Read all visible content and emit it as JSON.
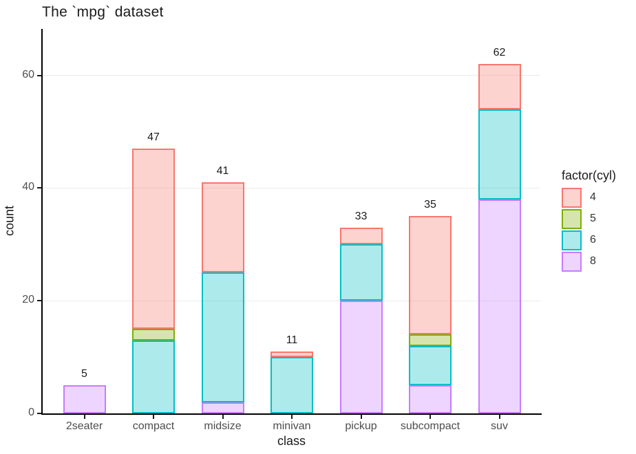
{
  "title": "The `mpg` dataset",
  "axes": {
    "x_label": "class",
    "y_label": "count",
    "y_ticks": [
      0,
      20,
      40,
      60
    ]
  },
  "legend": {
    "title": "factor(cyl)",
    "entries": [
      {
        "label": "4",
        "color": "#F8766D"
      },
      {
        "label": "5",
        "color": "#7CAE00"
      },
      {
        "label": "6",
        "color": "#00BFC4"
      },
      {
        "label": "8",
        "color": "#C77CFF"
      }
    ]
  },
  "style": {
    "fill_alpha": 0.32,
    "grid_color": "#ebebeb",
    "axis_color": "#000000",
    "tick_label_color": "#4d4d4d",
    "text_color": "#1a1a1a"
  },
  "chart_data": {
    "type": "bar",
    "stacked": true,
    "title": "The `mpg` dataset",
    "xlabel": "class",
    "ylabel": "count",
    "categories": [
      "2seater",
      "compact",
      "midsize",
      "minivan",
      "pickup",
      "subcompact",
      "suv"
    ],
    "series": [
      {
        "name": "4",
        "color": "#F8766D",
        "values": [
          0,
          32,
          16,
          1,
          3,
          21,
          8
        ]
      },
      {
        "name": "5",
        "color": "#7CAE00",
        "values": [
          0,
          2,
          0,
          0,
          0,
          2,
          0
        ]
      },
      {
        "name": "6",
        "color": "#00BFC4",
        "values": [
          0,
          13,
          23,
          10,
          10,
          7,
          16
        ]
      },
      {
        "name": "8",
        "color": "#C77CFF",
        "values": [
          5,
          0,
          2,
          0,
          20,
          5,
          38
        ]
      }
    ],
    "stack_order_bottom_to_top": [
      "8",
      "6",
      "5",
      "4"
    ],
    "totals": [
      5,
      47,
      41,
      11,
      33,
      35,
      62
    ],
    "ylim": [
      0,
      68.25
    ],
    "grid": "major-y",
    "legend_position": "right",
    "bar_labels_shown": true
  }
}
